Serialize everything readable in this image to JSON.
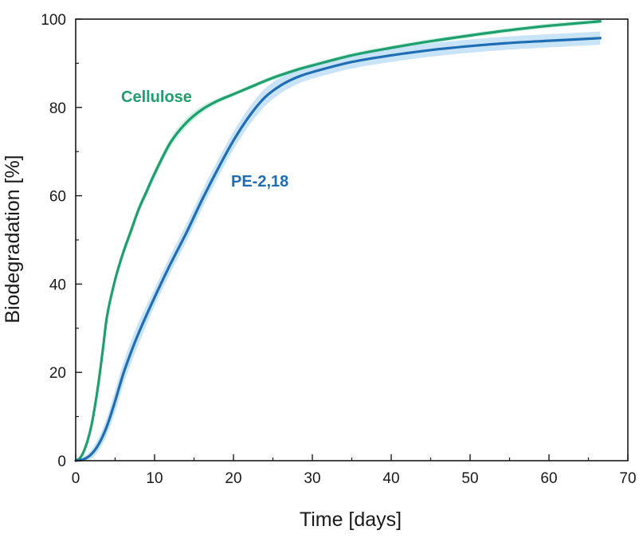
{
  "chart_data": {
    "type": "line",
    "title": "",
    "xlabel": "Time [days]",
    "ylabel": "Biodegradation [%]",
    "xlim": [
      0,
      70
    ],
    "ylim": [
      0,
      100
    ],
    "xticks": [
      0,
      10,
      20,
      30,
      40,
      50,
      60,
      70
    ],
    "yticks": [
      0,
      20,
      40,
      60,
      80,
      100
    ],
    "grid": false,
    "legend": "none",
    "series": [
      {
        "name": "Cellulose",
        "color": "#1f9e6e",
        "band_color": "#bfeed8",
        "x": [
          0,
          0.5,
          1,
          1.5,
          2,
          2.5,
          3,
          3.5,
          4,
          5,
          6,
          7,
          8,
          9,
          10,
          12,
          14,
          16,
          18,
          20,
          22,
          25,
          28,
          30,
          35,
          40,
          45,
          50,
          55,
          60,
          66.5
        ],
        "y": [
          0,
          0.5,
          2,
          4.5,
          8,
          13,
          19,
          26,
          33,
          41,
          47,
          52,
          57,
          61,
          65,
          72,
          76.5,
          79.5,
          81.5,
          83,
          84.5,
          86.7,
          88.5,
          89.5,
          91.8,
          93.5,
          95,
          96.3,
          97.5,
          98.5,
          99.5
        ],
        "band": [
          0,
          0.3,
          0.6,
          0.8,
          1,
          1,
          1,
          1,
          1,
          1,
          1,
          1,
          1,
          1,
          1,
          1,
          1,
          0.8,
          0.6,
          0.5,
          0.5,
          0.5,
          0.5,
          0.5,
          0.5,
          0.5,
          0.5,
          0.5,
          0.5,
          0.5,
          0.5
        ]
      },
      {
        "name": "PE-2,18",
        "color": "#1f6db3",
        "band_color": "#bcdcf5",
        "x": [
          0,
          1,
          2,
          3,
          4,
          5,
          6,
          7,
          8,
          10,
          12,
          14,
          16,
          18,
          20,
          22,
          24,
          26,
          28,
          30,
          35,
          40,
          45,
          50,
          55,
          60,
          66.5
        ],
        "y": [
          0,
          0.3,
          1.5,
          4,
          8,
          13.5,
          19.5,
          24.5,
          29,
          37,
          44.5,
          51.5,
          59,
          66,
          72.5,
          78,
          82.3,
          85,
          86.8,
          88,
          90.3,
          91.8,
          93,
          93.9,
          94.6,
          95.1,
          95.7
        ],
        "band": [
          0,
          0.5,
          1,
          1.5,
          2,
          2.5,
          2.5,
          2.5,
          2.5,
          2,
          2,
          2,
          2,
          2,
          2,
          2,
          2,
          1.8,
          1.6,
          1.5,
          1.5,
          1.5,
          1.5,
          1.5,
          1.5,
          1.5,
          1.5
        ]
      }
    ]
  }
}
